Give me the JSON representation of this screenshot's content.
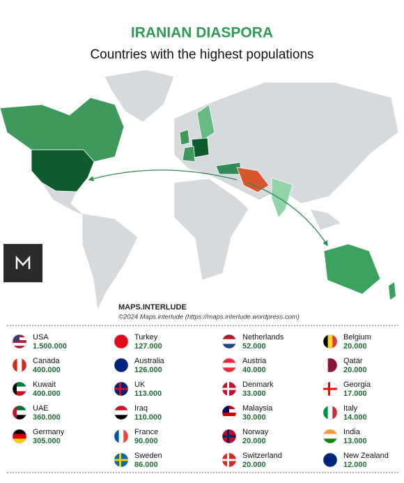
{
  "header": {
    "title": "IRANIAN DIASPORA",
    "subtitle": "Countries with the highest populations"
  },
  "credits": {
    "brand": "MAPS.INTERLUDE",
    "copyright": "©2024 Maps.interlude (https://maps.interlude.wordpress.com)"
  },
  "table": {
    "columns": [
      [
        {
          "country": "USA",
          "population": "1.500.000"
        },
        {
          "country": "Canada",
          "population": "400.000"
        },
        {
          "country": "Kuwait",
          "population": "400.000"
        },
        {
          "country": "UAE",
          "population": "360.000"
        },
        {
          "country": "Germany",
          "population": "305.000"
        }
      ],
      [
        {
          "country": "Turkey",
          "population": "127.000"
        },
        {
          "country": "Australia",
          "population": "126.000"
        },
        {
          "country": "UK",
          "population": "113.000"
        },
        {
          "country": "Iraq",
          "population": "110.000"
        },
        {
          "country": "France",
          "population": "90.000"
        },
        {
          "country": "Sweden",
          "population": "86.000"
        }
      ],
      [
        {
          "country": "Netherlands",
          "population": "52.000"
        },
        {
          "country": "Austria",
          "population": "40.000"
        },
        {
          "country": "Denmark",
          "population": "33.000"
        },
        {
          "country": "Malaysia",
          "population": "30.000"
        },
        {
          "country": "Norway",
          "population": "20.000"
        },
        {
          "country": "Switzerland",
          "population": "20.000"
        }
      ],
      [
        {
          "country": "Belgium",
          "population": "20.000"
        },
        {
          "country": "Qatar",
          "population": "20.000"
        },
        {
          "country": "Georgia",
          "population": "17.000"
        },
        {
          "country": "Italy",
          "population": "14.000"
        },
        {
          "country": "India",
          "population": "13.000"
        },
        {
          "country": "New Zealand",
          "population": "12.000"
        }
      ]
    ]
  }
}
